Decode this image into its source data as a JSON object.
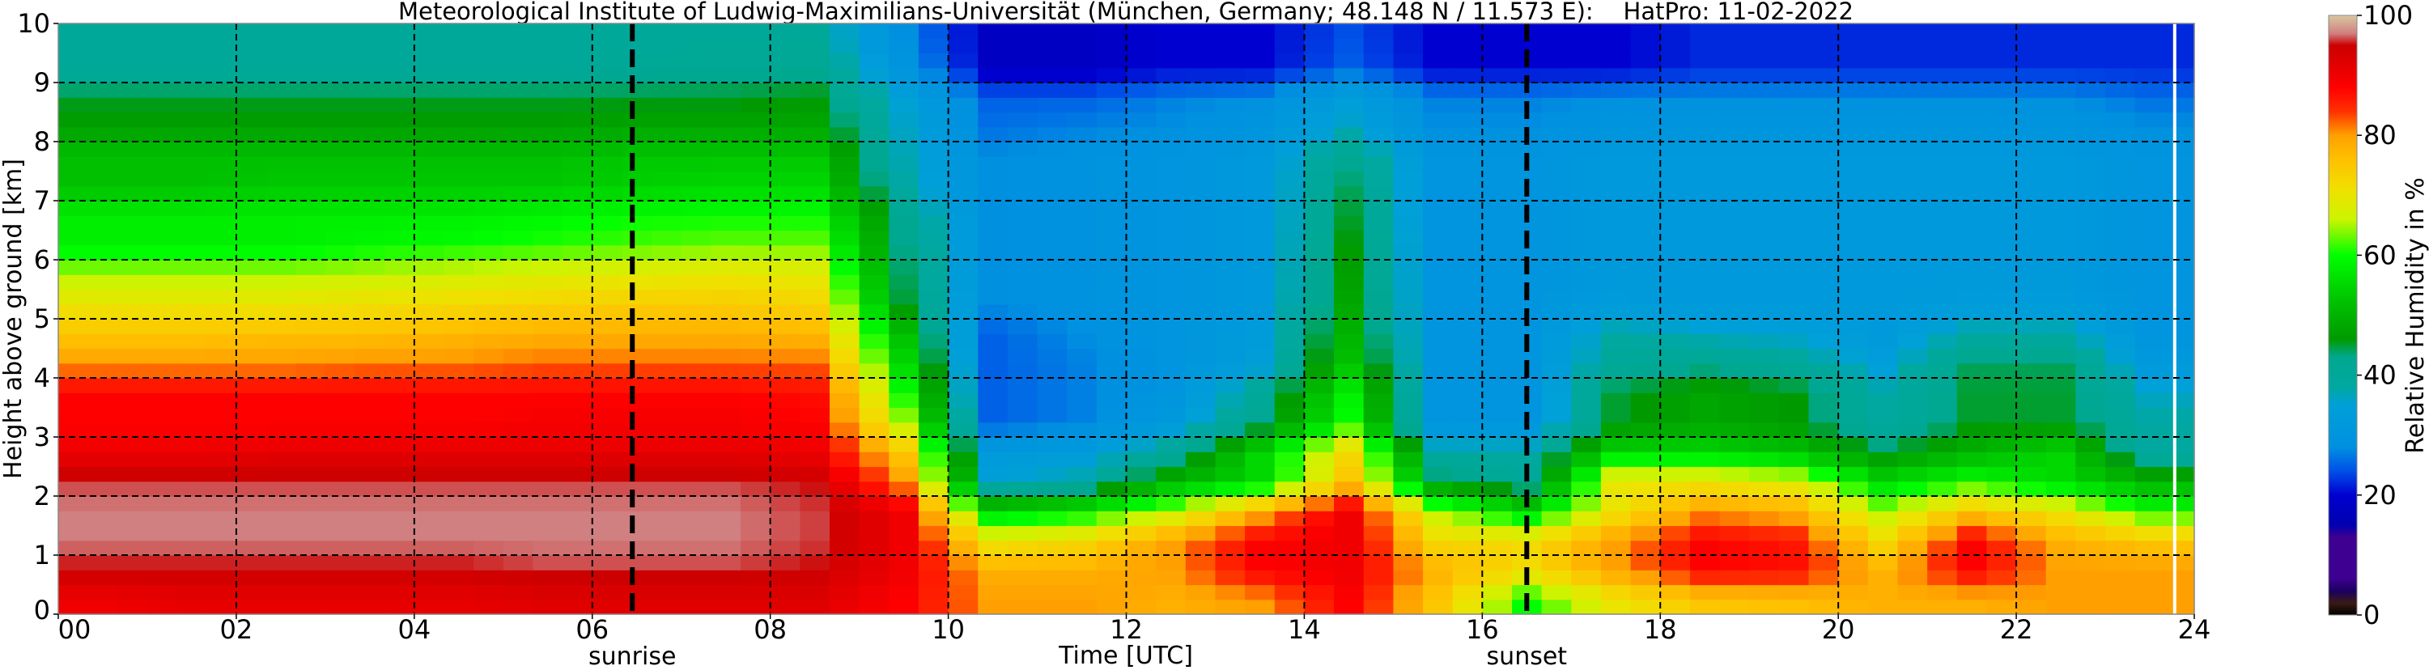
{
  "chart_data": {
    "type": "heatmap",
    "title": "Meteorological Institute of Ludwig-Maximilians-Universität (München, Germany; 48.148 N / 11.573 E):    HatPro: 11-02-2022",
    "xlabel": "Time [UTC]",
    "ylabel": "Height above ground [km]",
    "xlim": [
      0,
      24
    ],
    "ylim": [
      0,
      10
    ],
    "x_ticks": [
      "00",
      "02",
      "04",
      "06",
      "08",
      "10",
      "12",
      "14",
      "16",
      "18",
      "20",
      "22",
      "24"
    ],
    "y_ticks": [
      "0",
      "1",
      "2",
      "3",
      "4",
      "5",
      "6",
      "7",
      "8",
      "9",
      "10"
    ],
    "grid": true,
    "colorbar": {
      "label": "Relative Humidity in %",
      "range": [
        0,
        100
      ],
      "ticks": [
        "0",
        "20",
        "40",
        "60",
        "80",
        "100"
      ],
      "stops": [
        [
          0,
          "#000000"
        ],
        [
          2,
          "#3a1a14"
        ],
        [
          4,
          "#1a0060"
        ],
        [
          6,
          "#3d0090"
        ],
        [
          13,
          "#3d0090"
        ],
        [
          15,
          "#0000b0"
        ],
        [
          20,
          "#0000d0"
        ],
        [
          24,
          "#0050e8"
        ],
        [
          28,
          "#0090e0"
        ],
        [
          35,
          "#00a0d8"
        ],
        [
          38,
          "#00a8a0"
        ],
        [
          43,
          "#00a890"
        ],
        [
          46,
          "#009a00"
        ],
        [
          52,
          "#00c000"
        ],
        [
          60,
          "#00ff00"
        ],
        [
          66,
          "#ccf400"
        ],
        [
          71,
          "#f0e000"
        ],
        [
          76,
          "#ffc000"
        ],
        [
          80,
          "#ffa000"
        ],
        [
          84,
          "#ff3000"
        ],
        [
          88,
          "#ff0000"
        ],
        [
          92,
          "#e00000"
        ],
        [
          95,
          "#cc0000"
        ],
        [
          97,
          "#d08080"
        ],
        [
          100,
          "#d8c8a0"
        ]
      ]
    },
    "annotations": [
      {
        "label": "sunrise",
        "time": 6.45
      },
      {
        "label": "sunset",
        "time": 16.5
      }
    ],
    "missing_data_time": 23.78,
    "heights_km": [
      0.25,
      0.75,
      1.25,
      1.75,
      2.25,
      2.75,
      3.25,
      3.75,
      4.25,
      4.75,
      5.25,
      5.75,
      6.25,
      6.75,
      7.25,
      7.75,
      8.25,
      8.75,
      9.25,
      9.75
    ],
    "times_utc": [
      0.5,
      1.5,
      2.5,
      3.5,
      4.5,
      5.5,
      6.5,
      7.5,
      8.5,
      9.5,
      10.5,
      11.5,
      12.5,
      13.5,
      14.5,
      15.5,
      16.5,
      17.5,
      18.5,
      19.5,
      20.5,
      21.5,
      22.5,
      23.5
    ],
    "rh_profiles": [
      [
        90,
        95,
        97,
        97,
        96,
        90,
        88,
        88,
        80,
        75,
        70,
        65,
        58,
        58,
        52,
        52,
        47,
        45,
        40,
        40
      ],
      [
        91,
        95,
        97,
        97,
        96,
        90,
        88,
        88,
        80,
        75,
        70,
        65,
        58,
        58,
        52,
        52,
        47,
        45,
        40,
        40
      ],
      [
        91,
        95,
        97,
        97,
        96,
        91,
        88,
        88,
        80,
        76,
        70,
        65,
        58,
        58,
        53,
        52,
        47,
        45,
        40,
        40
      ],
      [
        91,
        95,
        97,
        97,
        96,
        91,
        88,
        88,
        81,
        76,
        71,
        66,
        59,
        58,
        53,
        52,
        47,
        45,
        40,
        40
      ],
      [
        91,
        95,
        97,
        97,
        96,
        91,
        88,
        88,
        81,
        77,
        72,
        67,
        60,
        58,
        53,
        52,
        47,
        45,
        40,
        40
      ],
      [
        92,
        96,
        97,
        97,
        96,
        91,
        89,
        88,
        82,
        78,
        73,
        68,
        61,
        59,
        53,
        52,
        47,
        45,
        40,
        40
      ],
      [
        92,
        96,
        97,
        97,
        96,
        91,
        89,
        88,
        82,
        78,
        74,
        69,
        62,
        60,
        54,
        53,
        48,
        45,
        41,
        40
      ],
      [
        92,
        96,
        97,
        97,
        96,
        91,
        89,
        88,
        82,
        78,
        74,
        70,
        63,
        60,
        55,
        53,
        48,
        45,
        42,
        40
      ],
      [
        92,
        95,
        96,
        96,
        95,
        90,
        88,
        87,
        82,
        77,
        73,
        69,
        63,
        60,
        55,
        53,
        48,
        46,
        42,
        40
      ],
      [
        88,
        90,
        90,
        90,
        80,
        75,
        65,
        60,
        55,
        52,
        45,
        44,
        43,
        42,
        38,
        37,
        36,
        35,
        30,
        28
      ],
      [
        80,
        78,
        70,
        55,
        35,
        32,
        25,
        25,
        25,
        25,
        28,
        28,
        28,
        28,
        28,
        28,
        26,
        25,
        18,
        18
      ],
      [
        80,
        78,
        72,
        58,
        38,
        33,
        27,
        27,
        27,
        28,
        29,
        29,
        29,
        29,
        29,
        29,
        27,
        25,
        18,
        18
      ],
      [
        78,
        80,
        80,
        65,
        50,
        40,
        32,
        30,
        30,
        30,
        30,
        30,
        30,
        30,
        30,
        30,
        28,
        27,
        20,
        20
      ],
      [
        80,
        88,
        88,
        78,
        55,
        55,
        42,
        40,
        34,
        33,
        32,
        32,
        32,
        32,
        32,
        32,
        30,
        28,
        20,
        20
      ],
      [
        88,
        90,
        90,
        90,
        75,
        72,
        60,
        58,
        52,
        50,
        48,
        47,
        46,
        45,
        44,
        42,
        36,
        34,
        25,
        24
      ],
      [
        75,
        78,
        72,
        65,
        45,
        38,
        30,
        30,
        30,
        30,
        30,
        30,
        30,
        30,
        30,
        30,
        28,
        27,
        20,
        20
      ],
      [
        60,
        72,
        72,
        55,
        40,
        38,
        30,
        30,
        30,
        30,
        30,
        30,
        30,
        30,
        30,
        30,
        28,
        27,
        20,
        20
      ],
      [
        70,
        80,
        80,
        70,
        70,
        55,
        45,
        45,
        40,
        38,
        33,
        32,
        32,
        32,
        32,
        32,
        30,
        28,
        20,
        20
      ],
      [
        75,
        88,
        88,
        80,
        70,
        55,
        48,
        48,
        42,
        36,
        32,
        32,
        32,
        32,
        32,
        32,
        30,
        28,
        22,
        22
      ],
      [
        76,
        87,
        86,
        78,
        68,
        52,
        46,
        46,
        40,
        35,
        32,
        32,
        32,
        32,
        32,
        32,
        30,
        28,
        22,
        22
      ],
      [
        78,
        78,
        72,
        65,
        55,
        45,
        38,
        38,
        34,
        32,
        32,
        32,
        32,
        32,
        32,
        32,
        30,
        28,
        22,
        22
      ],
      [
        78,
        88,
        88,
        75,
        60,
        50,
        45,
        45,
        44,
        38,
        33,
        32,
        32,
        32,
        32,
        32,
        30,
        28,
        22,
        22
      ],
      [
        80,
        80,
        78,
        70,
        55,
        55,
        45,
        45,
        44,
        38,
        33,
        32,
        32,
        32,
        32,
        32,
        30,
        28,
        22,
        22
      ],
      [
        80,
        80,
        75,
        60,
        50,
        38,
        38,
        36,
        32,
        30,
        30,
        30,
        30,
        30,
        30,
        30,
        28,
        26,
        22,
        22
      ]
    ]
  }
}
